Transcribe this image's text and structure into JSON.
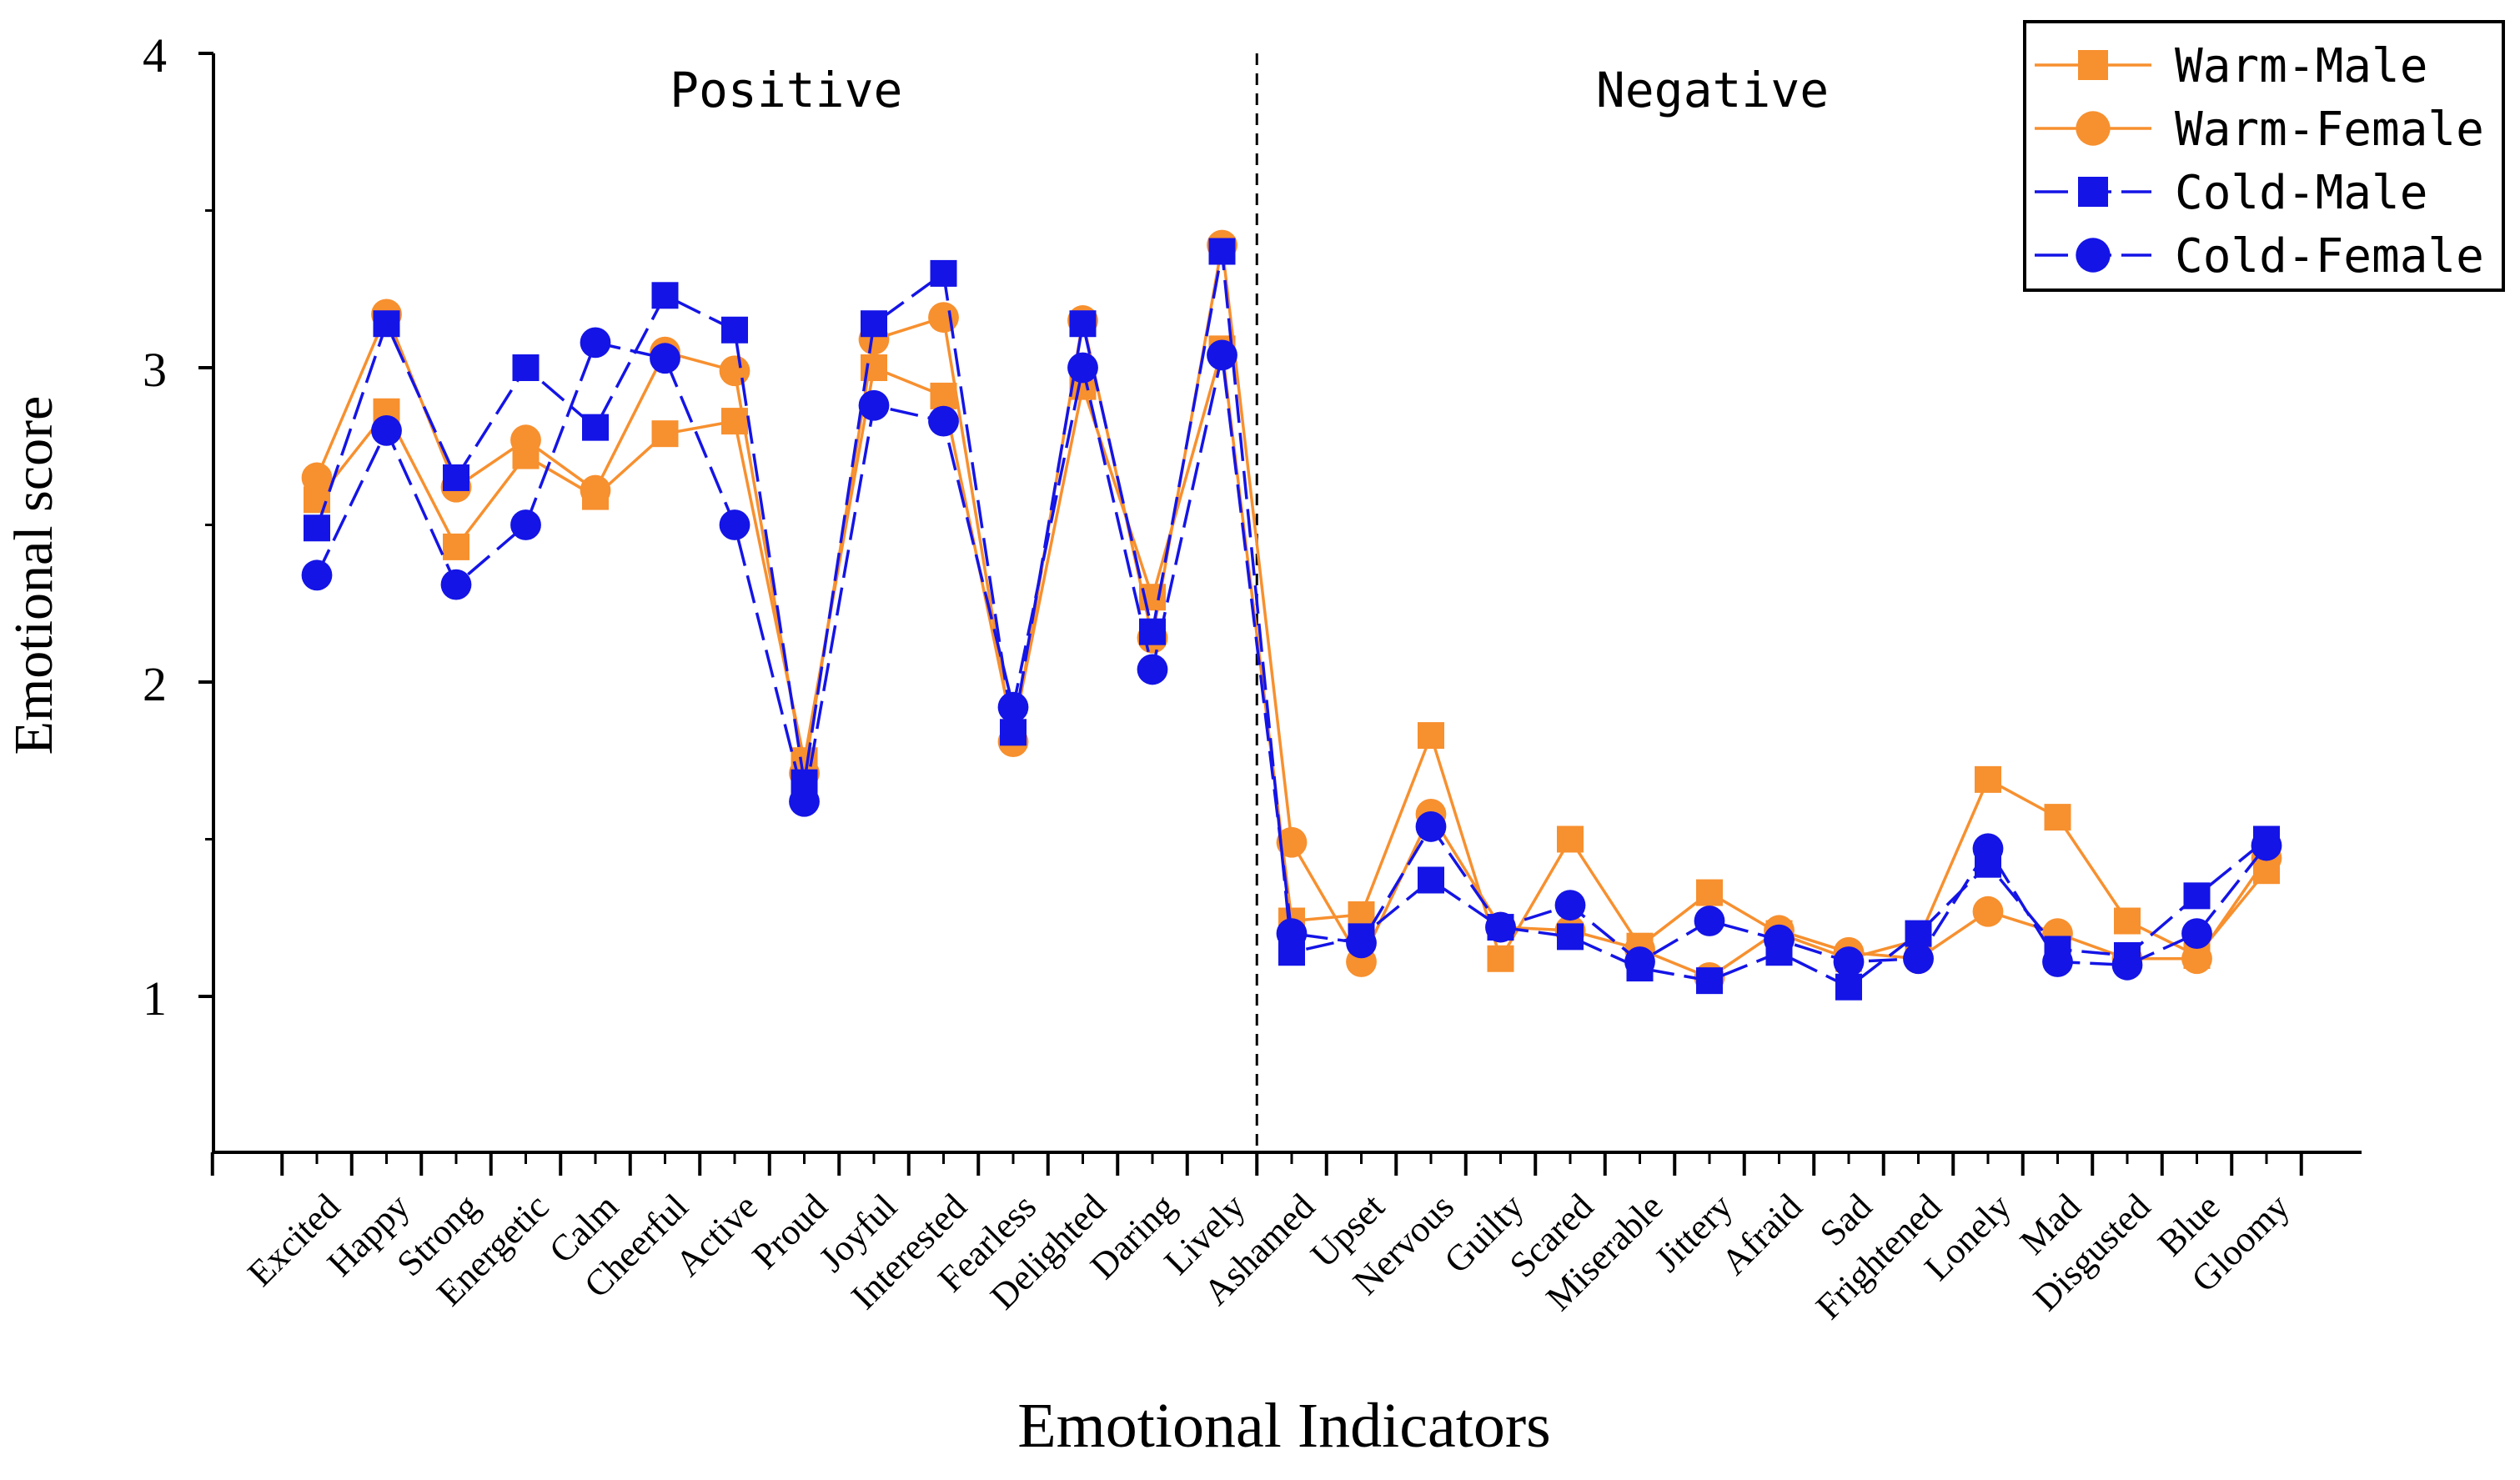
{
  "chart_data": {
    "type": "line",
    "xlabel": "Emotional Indicators",
    "ylabel": "Emotional score",
    "ylim": [
      0.5,
      4
    ],
    "yticks": [
      "1",
      "2",
      "3",
      "4"
    ],
    "categories": [
      "Excited",
      "Happy",
      "Strong",
      "Energetic",
      "Calm",
      "Cheerful",
      "Active",
      "Proud",
      "Joyful",
      "Interested",
      "Fearless",
      "Delighted",
      "Daring",
      "Lively",
      "Ashamed",
      "Upset",
      "Nervous",
      "Guilty",
      "Scared",
      "Miserable",
      "Jittery",
      "Afraid",
      "Sad",
      "Frightened",
      "Lonely",
      "Mad",
      "Disgusted",
      "Blue",
      "Gloomy"
    ],
    "region_labels": [
      "Positive",
      "Negative"
    ],
    "divider_after": "Lively",
    "legend_position": "top-right",
    "series": [
      {
        "name": "Warm-Male",
        "color": "#f7902f",
        "marker": "square",
        "dash": "solid",
        "values": [
          2.58,
          2.86,
          2.43,
          2.72,
          2.59,
          2.79,
          2.83,
          1.75,
          3.0,
          2.91,
          1.84,
          2.94,
          2.27,
          3.06,
          1.24,
          1.26,
          1.83,
          1.12,
          1.5,
          1.16,
          1.33,
          1.2,
          1.12,
          1.18,
          1.69,
          1.57,
          1.24,
          1.13,
          1.4
        ]
      },
      {
        "name": "Warm-Female",
        "color": "#f7902f",
        "marker": "circle",
        "dash": "solid",
        "values": [
          2.65,
          3.17,
          2.62,
          2.77,
          2.61,
          3.05,
          2.99,
          1.71,
          3.09,
          3.16,
          1.81,
          3.15,
          2.14,
          3.39,
          1.49,
          1.11,
          1.58,
          1.22,
          1.21,
          1.15,
          1.06,
          1.21,
          1.14,
          1.12,
          1.27,
          1.2,
          1.12,
          1.12,
          1.44
        ]
      },
      {
        "name": "Cold-Male",
        "color": "#1414e6",
        "marker": "square",
        "dash": "dash",
        "values": [
          2.49,
          3.14,
          2.65,
          3.0,
          2.81,
          3.23,
          3.12,
          1.68,
          3.14,
          3.3,
          1.84,
          3.14,
          2.16,
          3.37,
          1.14,
          1.19,
          1.37,
          1.22,
          1.19,
          1.09,
          1.05,
          1.14,
          1.03,
          1.2,
          1.42,
          1.15,
          1.13,
          1.32,
          1.5
        ]
      },
      {
        "name": "Cold-Female",
        "color": "#1414e6",
        "marker": "circle",
        "dash": "dash",
        "values": [
          2.34,
          2.8,
          2.31,
          2.5,
          3.08,
          3.03,
          2.5,
          1.62,
          2.88,
          2.83,
          1.92,
          3.0,
          2.04,
          3.04,
          1.2,
          1.17,
          1.54,
          1.22,
          1.29,
          1.11,
          1.24,
          1.18,
          1.11,
          1.12,
          1.47,
          1.11,
          1.1,
          1.2,
          1.48
        ]
      }
    ]
  }
}
